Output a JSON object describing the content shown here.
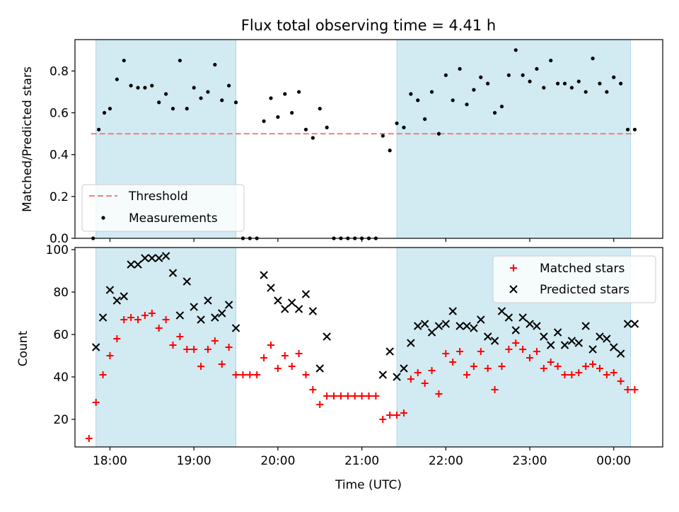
{
  "figure": {
    "title": "Flux total observing time = 4.41 h",
    "xlabel": "Time (UTC)",
    "x_ticks": [
      "18:00",
      "19:00",
      "20:00",
      "21:00",
      "22:00",
      "23:00",
      "00:00"
    ]
  },
  "chart_data": [
    {
      "type": "scatter",
      "panel": "top",
      "ylabel": "Matched/Predicted stars",
      "xlim": [
        "17:35",
        "00:35"
      ],
      "ylim": [
        0,
        0.95
      ],
      "yticks": [
        "0.0",
        "0.2",
        "0.4",
        "0.6",
        "0.8"
      ],
      "shaded_intervals": [
        [
          "17:50",
          "19:30"
        ],
        [
          "21:25",
          "00:12"
        ]
      ],
      "threshold": 0.5,
      "legend": {
        "placement": "lower-left",
        "entries": [
          "Threshold",
          "Measurements"
        ]
      },
      "series": [
        {
          "name": "Measurements",
          "x": [
            "17:48",
            "17:52",
            "17:56",
            "18:00",
            "18:05",
            "18:10",
            "18:15",
            "18:20",
            "18:25",
            "18:30",
            "18:35",
            "18:40",
            "18:45",
            "18:50",
            "18:55",
            "19:00",
            "19:05",
            "19:10",
            "19:15",
            "19:20",
            "19:25",
            "19:30",
            "19:35",
            "19:40",
            "19:45",
            "19:50",
            "19:55",
            "20:00",
            "20:05",
            "20:10",
            "20:15",
            "20:20",
            "20:25",
            "20:30",
            "20:35",
            "20:40",
            "20:45",
            "20:50",
            "20:55",
            "21:00",
            "21:05",
            "21:10",
            "21:15",
            "21:20",
            "21:25",
            "21:30",
            "21:35",
            "21:40",
            "21:45",
            "21:50",
            "21:55",
            "22:00",
            "22:05",
            "22:10",
            "22:15",
            "22:20",
            "22:25",
            "22:30",
            "22:35",
            "22:40",
            "22:45",
            "22:50",
            "22:55",
            "23:00",
            "23:05",
            "23:10",
            "23:15",
            "23:20",
            "23:25",
            "23:30",
            "23:35",
            "23:40",
            "23:45",
            "23:50",
            "23:55",
            "00:00",
            "00:05",
            "00:10",
            "00:15"
          ],
          "y": [
            0.0,
            0.52,
            0.6,
            0.62,
            0.76,
            0.85,
            0.73,
            0.72,
            0.72,
            0.73,
            0.65,
            0.69,
            0.62,
            0.85,
            0.62,
            0.72,
            0.67,
            0.7,
            0.83,
            0.66,
            0.73,
            0.65,
            0.0,
            0.0,
            0.0,
            0.56,
            0.67,
            0.58,
            0.69,
            0.6,
            0.7,
            0.52,
            0.48,
            0.62,
            0.53,
            0.0,
            0.0,
            0.0,
            0.0,
            0.0,
            0.0,
            0.0,
            0.49,
            0.42,
            0.55,
            0.53,
            0.69,
            0.66,
            0.57,
            0.7,
            0.5,
            0.78,
            0.66,
            0.81,
            0.64,
            0.71,
            0.77,
            0.74,
            0.6,
            0.63,
            0.78,
            0.9,
            0.78,
            0.75,
            0.81,
            0.72,
            0.85,
            0.74,
            0.74,
            0.72,
            0.75,
            0.7,
            0.86,
            0.74,
            0.7,
            0.77,
            0.74,
            0.52,
            0.52
          ]
        }
      ]
    },
    {
      "type": "scatter",
      "panel": "bottom",
      "ylabel": "Count",
      "xlim": [
        "17:35",
        "00:35"
      ],
      "ylim": [
        7,
        101
      ],
      "yticks": [
        "20",
        "40",
        "60",
        "80",
        "100"
      ],
      "shaded_intervals": [
        [
          "17:50",
          "19:30"
        ],
        [
          "21:25",
          "00:12"
        ]
      ],
      "legend": {
        "placement": "upper-right",
        "entries": [
          "Matched stars",
          "Predicted stars"
        ]
      },
      "series": [
        {
          "name": "Matched stars",
          "x": [
            "17:45",
            "17:50",
            "17:55",
            "18:00",
            "18:05",
            "18:10",
            "18:15",
            "18:20",
            "18:25",
            "18:30",
            "18:35",
            "18:40",
            "18:45",
            "18:50",
            "18:55",
            "19:00",
            "19:05",
            "19:10",
            "19:15",
            "19:20",
            "19:25",
            "19:30",
            "19:35",
            "19:40",
            "19:45",
            "19:50",
            "19:55",
            "20:00",
            "20:05",
            "20:10",
            "20:15",
            "20:20",
            "20:25",
            "20:30",
            "20:35",
            "20:40",
            "20:45",
            "20:50",
            "20:55",
            "21:00",
            "21:05",
            "21:10",
            "21:15",
            "21:20",
            "21:25",
            "21:30",
            "21:35",
            "21:40",
            "21:45",
            "21:50",
            "21:55",
            "22:00",
            "22:05",
            "22:10",
            "22:15",
            "22:20",
            "22:25",
            "22:30",
            "22:35",
            "22:40",
            "22:45",
            "22:50",
            "22:55",
            "23:00",
            "23:05",
            "23:10",
            "23:15",
            "23:20",
            "23:25",
            "23:30",
            "23:35",
            "23:40",
            "23:45",
            "23:50",
            "23:55",
            "00:00",
            "00:05",
            "00:10",
            "00:15"
          ],
          "y": [
            11,
            28,
            41,
            50,
            58,
            67,
            68,
            67,
            69,
            70,
            63,
            67,
            55,
            59,
            53,
            53,
            45,
            53,
            57,
            46,
            54,
            41,
            41,
            41,
            41,
            49,
            55,
            44,
            50,
            45,
            51,
            41,
            34,
            27,
            31,
            31,
            31,
            31,
            31,
            31,
            31,
            31,
            20,
            22,
            22,
            23,
            39,
            42,
            37,
            43,
            32,
            51,
            47,
            52,
            41,
            45,
            52,
            44,
            34,
            45,
            53,
            56,
            53,
            49,
            52,
            44,
            47,
            45,
            41,
            41,
            42,
            45,
            46,
            44,
            41,
            42,
            38,
            34,
            34
          ]
        },
        {
          "name": "Predicted stars",
          "x": [
            "17:50",
            "17:55",
            "18:00",
            "18:05",
            "18:10",
            "18:15",
            "18:20",
            "18:25",
            "18:30",
            "18:35",
            "18:40",
            "18:45",
            "18:50",
            "18:55",
            "19:00",
            "19:05",
            "19:10",
            "19:15",
            "19:20",
            "19:25",
            "19:30",
            "19:50",
            "19:55",
            "20:00",
            "20:05",
            "20:10",
            "20:15",
            "20:20",
            "20:25",
            "20:30",
            "20:35",
            "21:15",
            "21:20",
            "21:25",
            "21:30",
            "21:35",
            "21:40",
            "21:45",
            "21:50",
            "21:55",
            "22:00",
            "22:05",
            "22:10",
            "22:15",
            "22:20",
            "22:25",
            "22:30",
            "22:35",
            "22:40",
            "22:45",
            "22:50",
            "22:55",
            "23:00",
            "23:05",
            "23:10",
            "23:15",
            "23:20",
            "23:25",
            "23:30",
            "23:35",
            "23:40",
            "23:45",
            "23:50",
            "23:55",
            "00:00",
            "00:05",
            "00:10",
            "00:15"
          ],
          "y": [
            54,
            68,
            81,
            76,
            78,
            93,
            93,
            96,
            96,
            96,
            97,
            89,
            69,
            85,
            73,
            67,
            76,
            68,
            70,
            74,
            63,
            88,
            82,
            76,
            72,
            75,
            72,
            79,
            71,
            44,
            59,
            41,
            52,
            40,
            44,
            56,
            64,
            65,
            61,
            64,
            65,
            71,
            64,
            64,
            63,
            67,
            59,
            57,
            71,
            68,
            62,
            68,
            65,
            64,
            59,
            55,
            61,
            55,
            57,
            56,
            64,
            53,
            59,
            58,
            54,
            51,
            65,
            65
          ]
        }
      ]
    }
  ],
  "colors": {
    "matched": "#ff0000",
    "predicted": "#000000",
    "threshold": "#f08080",
    "shade": "#add8e6",
    "measurement": "#000000"
  }
}
